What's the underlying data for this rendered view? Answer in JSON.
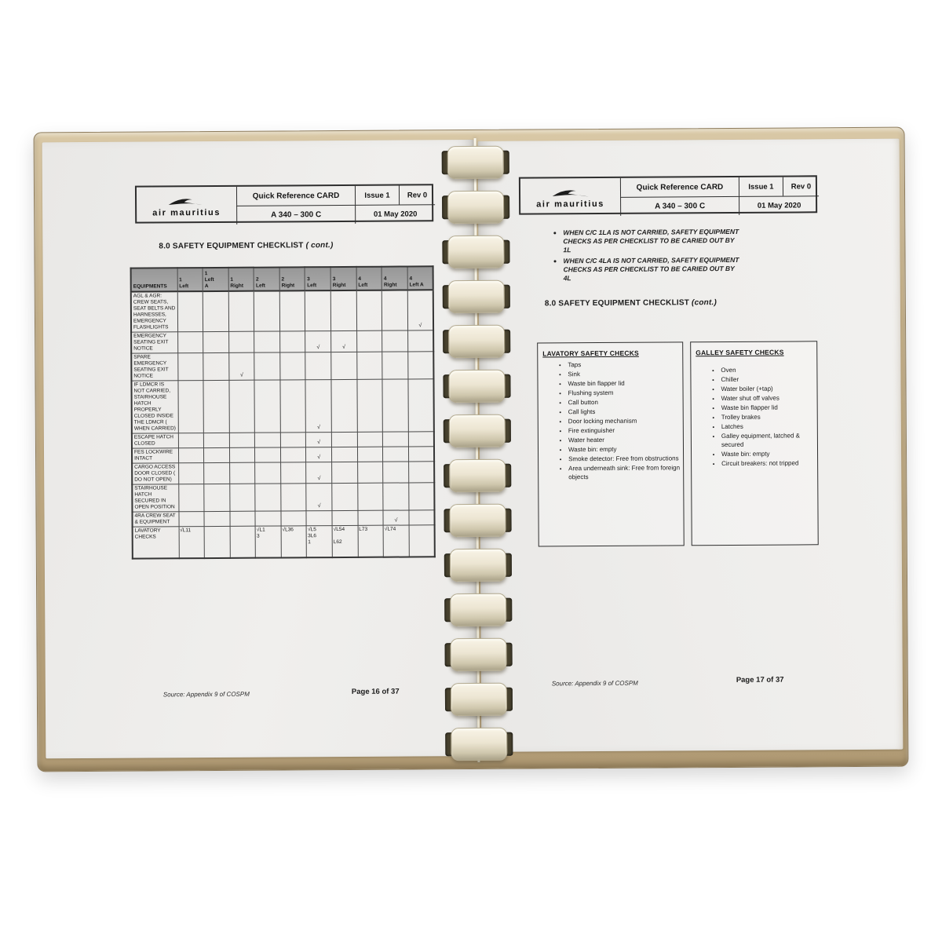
{
  "colors": {
    "page": "#eeedeb",
    "cover": "#c3ae8b",
    "binding_ring": "#ece6d6",
    "table_header_gray": "#a3a3a3",
    "text": "#1d1d1d"
  },
  "header": {
    "logo_text": "air mauritius",
    "title": "Quick Reference CARD",
    "aircraft": "A 340 – 300 C",
    "issue": "Issue 1",
    "rev": "Rev 0",
    "date": "01 May 2020"
  },
  "left_page": {
    "section_title": "8.0 SAFETY EQUIPMENT CHECKLIST",
    "section_title_suffix": "( cont.)",
    "table": {
      "columns": [
        "EQUIPMENTS",
        "1\nLeft",
        "1\nLeft\nA",
        "1\nRight",
        "2\nLeft",
        "2\nRight",
        "3\nLeft",
        "3\nRight",
        "4\nLeft",
        "4\nRight",
        "4\nLeft A"
      ],
      "rows": [
        {
          "equipment": "AGL & AGR: CREW SEATS, SEAT BELTS AND HARNESSES, EMERGENCY FLASHLIGHTS",
          "cells": [
            "",
            "",
            "",
            "",
            "",
            "",
            "",
            "",
            "",
            "√"
          ]
        },
        {
          "equipment": "EMERGENCY SEATING EXIT NOTICE",
          "cells": [
            "",
            "",
            "",
            "",
            "",
            "√",
            "√",
            "",
            "",
            ""
          ]
        },
        {
          "equipment": "SPARE EMERGENCY SEATING EXIT NOTICE",
          "cells": [
            "",
            "",
            "√",
            "",
            "",
            "",
            "",
            "",
            "",
            ""
          ]
        },
        {
          "equipment": "IF LDMCR IS NOT CARRIED, STAIRHOUSE HATCH PROPERLY CLOSED INSIDE THE LDMCR ( WHEN CARRIED)",
          "cells": [
            "",
            "",
            "",
            "",
            "",
            "√",
            "",
            "",
            "",
            ""
          ]
        },
        {
          "equipment": "ESCAPE HATCH CLOSED",
          "cells": [
            "",
            "",
            "",
            "",
            "",
            "√",
            "",
            "",
            "",
            ""
          ]
        },
        {
          "equipment": "FES LOCKWIRE INTACT",
          "cells": [
            "",
            "",
            "",
            "",
            "",
            "√",
            "",
            "",
            "",
            ""
          ]
        },
        {
          "equipment": "CARGO ACCESS DOOR CLOSED ( DO NOT OPEN)",
          "cells": [
            "",
            "",
            "",
            "",
            "",
            "√",
            "",
            "",
            "",
            ""
          ]
        },
        {
          "equipment": "STAIRHOUSE HATCH SECURED IN OPEN POSITION",
          "cells": [
            "",
            "",
            "",
            "",
            "",
            "√",
            "",
            "",
            "",
            ""
          ]
        },
        {
          "equipment": "4RA CREW SEAT & EQUIPMENT",
          "cells": [
            "",
            "",
            "",
            "",
            "",
            "",
            "",
            "",
            "√",
            ""
          ]
        },
        {
          "equipment": "LAVATORY CHECKS",
          "cells": [
            "√L11",
            "",
            "",
            "√L1\n3",
            "√L36",
            "√L5\n3L6\n1",
            "√L54\n\nL62",
            "L73",
            "√L74",
            ""
          ]
        }
      ]
    },
    "source": "Source: Appendix 9 of COSPM",
    "page_number": "Page 16 of 37"
  },
  "right_page": {
    "notes": [
      "WHEN C/C 1LA IS NOT CARRIED, SAFETY EQUIPMENT CHECKS AS PER CHECKLIST TO BE CARIED OUT BY 1L",
      "WHEN C/C 4LA IS NOT CARRIED, SAFETY EQUIPMENT CHECKS AS PER CHECKLIST TO BE CARIED OUT BY 4L"
    ],
    "section_title": "8.0 SAFETY EQUIPMENT CHECKLIST",
    "section_title_suffix": "(cont.)",
    "lavatory": {
      "heading": "LAVATORY SAFETY CHECKS",
      "items": [
        "Taps",
        "Sink",
        "Waste bin flapper lid",
        "Flushing system",
        "Call button",
        "Call lights",
        "Door locking mechanism",
        "Fire extinguisher",
        "Water heater",
        "Waste bin: empty",
        "Smoke detector: Free from obstructions",
        "Area underneath sink: Free from foreign objects"
      ]
    },
    "galley": {
      "heading": "GALLEY SAFETY CHECKS",
      "items": [
        "Oven",
        "Chiller",
        "Water boiler (+tap)",
        "Water shut off valves",
        "Waste bin flapper lid",
        "Trolley brakes",
        "Latches",
        "Galley equipment, latched & secured",
        "Waste bin: empty",
        "Circuit breakers: not tripped"
      ]
    },
    "source": "Source: Appendix 9 of COSPM",
    "page_number": "Page 17 of 37"
  }
}
